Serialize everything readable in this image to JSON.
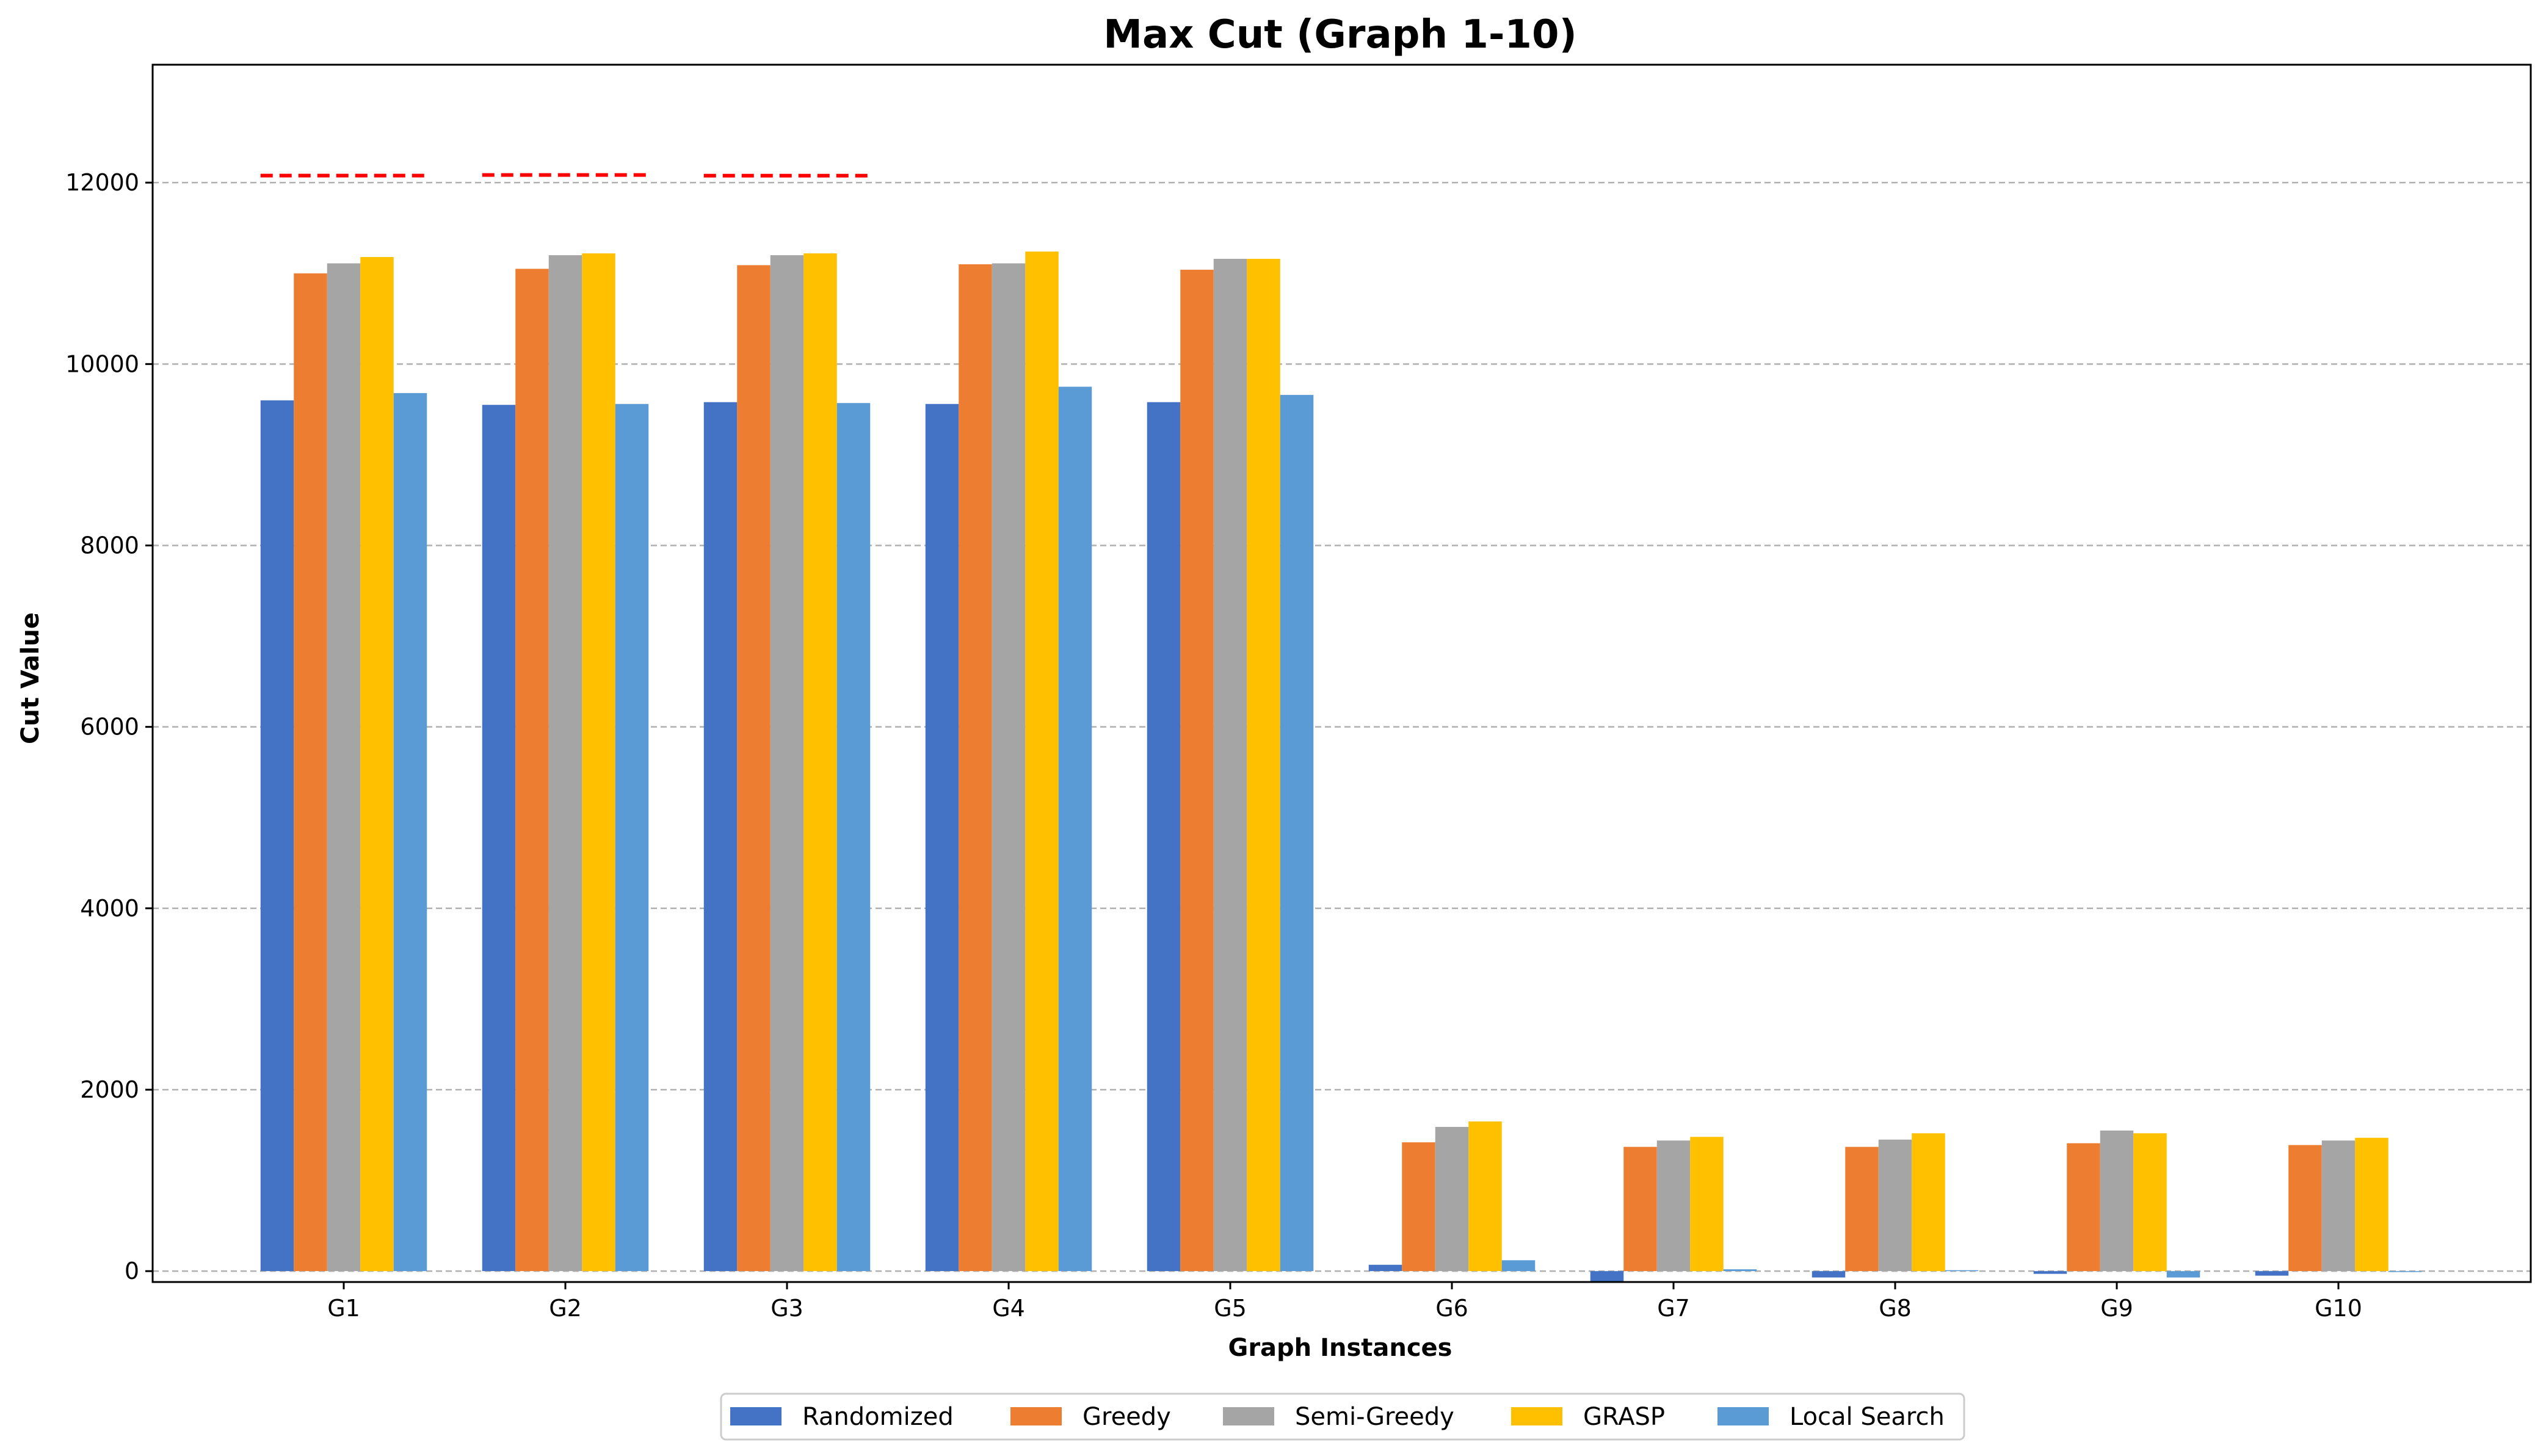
{
  "chart_data": {
    "type": "bar",
    "title": "Max Cut (Graph 1-10)",
    "xlabel": "Graph Instances",
    "ylabel": "Cut Value",
    "categories": [
      "G1",
      "G2",
      "G3",
      "G4",
      "G5",
      "G6",
      "G7",
      "G8",
      "G9",
      "G10"
    ],
    "ylim": [
      -120,
      13300
    ],
    "yticks": [
      0,
      2000,
      4000,
      6000,
      8000,
      10000,
      12000
    ],
    "grid": "y-dashed",
    "legend_position": "bottom-center",
    "series": [
      {
        "name": "Randomized",
        "color": "#4472c4",
        "values": [
          9600,
          9550,
          9580,
          9560,
          9580,
          70,
          -120,
          -70,
          -30,
          -50
        ]
      },
      {
        "name": "Greedy",
        "color": "#ed7d31",
        "values": [
          11000,
          11050,
          11090,
          11100,
          11040,
          1420,
          1370,
          1370,
          1410,
          1390
        ]
      },
      {
        "name": "Semi-Greedy",
        "color": "#a5a5a5",
        "values": [
          11110,
          11200,
          11200,
          11110,
          11160,
          1590,
          1440,
          1450,
          1550,
          1440
        ]
      },
      {
        "name": "GRASP",
        "color": "#ffc000",
        "values": [
          11180,
          11220,
          11220,
          11240,
          11160,
          1650,
          1480,
          1520,
          1520,
          1470
        ]
      },
      {
        "name": "Local Search",
        "color": "#5b9bd5",
        "values": [
          9680,
          9560,
          9570,
          9750,
          9660,
          120,
          20,
          10,
          -70,
          -10
        ]
      }
    ],
    "reference_lines": {
      "color": "#ff0000",
      "style": "dashed",
      "points": [
        {
          "category": "G1",
          "value": 12078
        },
        {
          "category": "G2",
          "value": 12084
        },
        {
          "category": "G3",
          "value": 12077
        }
      ]
    }
  }
}
